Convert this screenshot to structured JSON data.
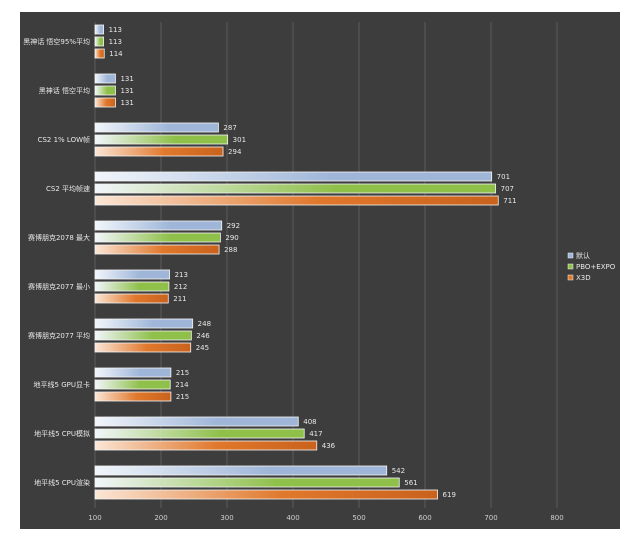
{
  "chart_data": {
    "type": "bar",
    "orientation": "horizontal",
    "categories": [
      "黑神话 悟空95%平均",
      "黑神话 悟空平均",
      "CS2 1% LOW帧",
      "CS2 平均帧速",
      "赛博朋克2078 最大",
      "赛博朋克2077 最小",
      "赛博朋克2077 平均",
      "地平线5 GPU显卡",
      "地平线5 CPU模拟",
      "地平线5 CPU渲染"
    ],
    "series": [
      {
        "name": "默认",
        "color": "#9fb6d9",
        "values": [
          113,
          131,
          287,
          701,
          292,
          213,
          248,
          215,
          408,
          542
        ]
      },
      {
        "name": "PBO+EXPO",
        "color": "#8fc04a",
        "values": [
          113,
          131,
          301,
          707,
          290,
          212,
          246,
          214,
          417,
          561
        ]
      },
      {
        "name": "X3D",
        "color": "#e0782c",
        "values": [
          114,
          131,
          294,
          711,
          288,
          211,
          245,
          215,
          436,
          619
        ]
      }
    ],
    "xticks": [
      100,
      200,
      300,
      400,
      500,
      600,
      700,
      800
    ],
    "xlim": [
      100,
      800
    ],
    "grid": true,
    "legend_position": "right"
  }
}
